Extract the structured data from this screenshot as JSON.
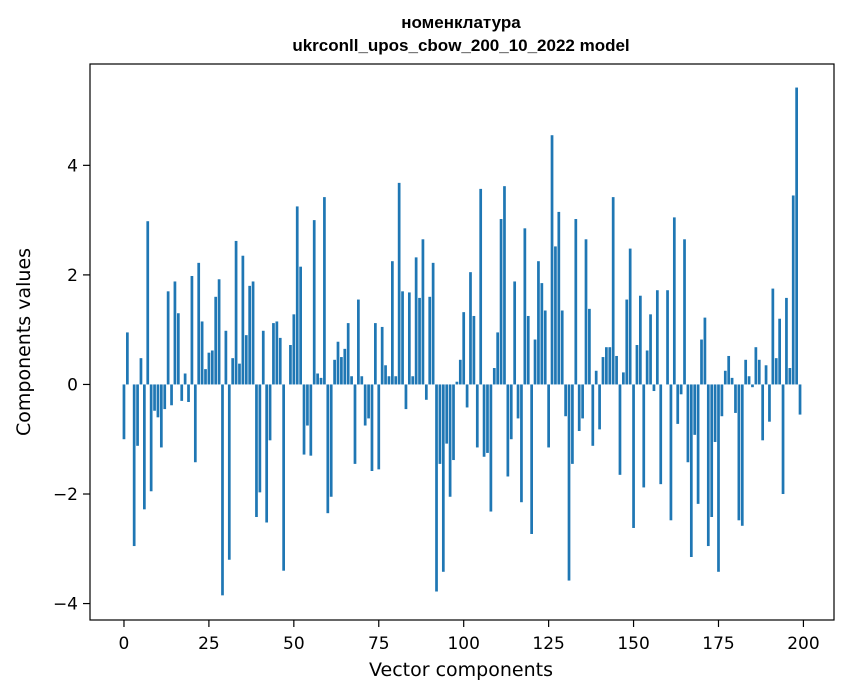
{
  "chart_data": {
    "type": "bar",
    "title": "номенклатура",
    "subtitle": "ukrconll_upos_cbow_200_10_2022 model",
    "xlabel": "Vector components",
    "ylabel": "Components values",
    "xlim": [
      -10,
      209
    ],
    "ylim": [
      -4.3,
      5.85
    ],
    "xticks": [
      0,
      25,
      50,
      75,
      100,
      125,
      150,
      175,
      200
    ],
    "yticks": [
      -4,
      -2,
      0,
      2,
      4
    ],
    "ytick_labels": [
      "−4",
      "−2",
      "0",
      "2",
      "4"
    ],
    "grid": false,
    "legend": "none",
    "bar_color": "#1f77b4",
    "bar_width": 0.8,
    "x": [
      0,
      1,
      2,
      3,
      4,
      5,
      6,
      7,
      8,
      9,
      10,
      11,
      12,
      13,
      14,
      15,
      16,
      17,
      18,
      19,
      20,
      21,
      22,
      23,
      24,
      25,
      26,
      27,
      28,
      29,
      30,
      31,
      32,
      33,
      34,
      35,
      36,
      37,
      38,
      39,
      40,
      41,
      42,
      43,
      44,
      45,
      46,
      47,
      48,
      49,
      50,
      51,
      52,
      53,
      54,
      55,
      56,
      57,
      58,
      59,
      60,
      61,
      62,
      63,
      64,
      65,
      66,
      67,
      68,
      69,
      70,
      71,
      72,
      73,
      74,
      75,
      76,
      77,
      78,
      79,
      80,
      81,
      82,
      83,
      84,
      85,
      86,
      87,
      88,
      89,
      90,
      91,
      92,
      93,
      94,
      95,
      96,
      97,
      98,
      99,
      100,
      101,
      102,
      103,
      104,
      105,
      106,
      107,
      108,
      109,
      110,
      111,
      112,
      113,
      114,
      115,
      116,
      117,
      118,
      119,
      120,
      121,
      122,
      123,
      124,
      125,
      126,
      127,
      128,
      129,
      130,
      131,
      132,
      133,
      134,
      135,
      136,
      137,
      138,
      139,
      140,
      141,
      142,
      143,
      144,
      145,
      146,
      147,
      148,
      149,
      150,
      151,
      152,
      153,
      154,
      155,
      156,
      157,
      158,
      159,
      160,
      161,
      162,
      163,
      164,
      165,
      166,
      167,
      168,
      169,
      170,
      171,
      172,
      173,
      174,
      175,
      176,
      177,
      178,
      179,
      180,
      181,
      182,
      183,
      184,
      185,
      186,
      187,
      188,
      189,
      190,
      191,
      192,
      193,
      194,
      195,
      196,
      197,
      198,
      199
    ],
    "values": [
      -1.0,
      0.95,
      0.0,
      -2.95,
      -1.12,
      0.48,
      -2.28,
      2.98,
      -1.95,
      -0.48,
      -0.6,
      -1.15,
      -0.45,
      1.7,
      -0.38,
      1.88,
      1.3,
      -0.3,
      0.2,
      -0.32,
      1.98,
      -1.42,
      2.22,
      1.15,
      0.28,
      0.58,
      0.62,
      1.6,
      1.92,
      -3.85,
      0.98,
      -3.2,
      0.48,
      2.62,
      0.38,
      2.35,
      0.9,
      1.8,
      1.88,
      -2.42,
      -1.97,
      0.98,
      -2.52,
      -1.02,
      1.12,
      1.15,
      0.85,
      -3.4,
      0.0,
      0.72,
      1.28,
      3.25,
      2.15,
      -1.28,
      -0.75,
      -1.3,
      3.0,
      0.2,
      0.12,
      3.42,
      -2.35,
      -2.05,
      0.45,
      0.78,
      0.5,
      0.65,
      1.12,
      0.15,
      -1.45,
      1.55,
      0.15,
      -0.75,
      -0.62,
      -1.58,
      1.12,
      -1.55,
      1.05,
      0.35,
      0.15,
      2.25,
      0.15,
      3.68,
      1.7,
      -0.45,
      1.68,
      0.15,
      2.32,
      1.58,
      2.65,
      -0.28,
      1.6,
      2.22,
      -3.78,
      -1.45,
      -3.42,
      -1.08,
      -2.05,
      -1.38,
      0.05,
      0.45,
      1.32,
      -0.42,
      2.05,
      1.25,
      -1.15,
      3.57,
      -1.32,
      -1.25,
      -2.32,
      0.3,
      0.95,
      3.02,
      3.62,
      -1.68,
      -1.0,
      1.88,
      -0.62,
      -2.15,
      2.85,
      1.25,
      -2.73,
      0.82,
      2.25,
      1.85,
      1.35,
      -1.15,
      4.55,
      2.52,
      3.15,
      1.35,
      -0.58,
      -3.58,
      -1.45,
      3.02,
      -0.85,
      -0.62,
      2.65,
      1.38,
      -1.12,
      0.25,
      -0.82,
      0.5,
      0.68,
      0.68,
      3.42,
      0.52,
      -1.65,
      0.22,
      1.55,
      2.48,
      -2.62,
      0.72,
      1.62,
      -1.88,
      0.62,
      1.28,
      -0.12,
      1.72,
      -1.82,
      0.0,
      1.72,
      -2.48,
      3.05,
      -0.72,
      -0.18,
      2.65,
      -1.42,
      -3.15,
      -0.92,
      -2.18,
      0.82,
      1.22,
      -2.95,
      -2.42,
      -1.05,
      -3.42,
      -0.58,
      0.25,
      0.52,
      0.12,
      -0.52,
      -2.48,
      -2.58,
      0.45,
      0.15,
      -0.05,
      0.68,
      0.45,
      -1.02,
      0.35,
      -0.68,
      1.75,
      0.48,
      1.2,
      -2.0,
      1.58,
      0.3,
      3.45,
      5.42,
      -0.55
    ]
  }
}
